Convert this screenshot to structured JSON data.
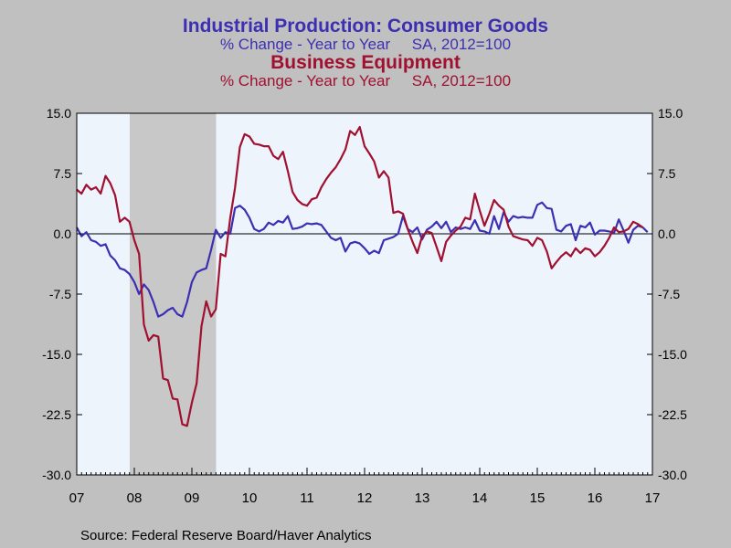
{
  "titles": {
    "consumer_title": "Industrial Production: Consumer Goods",
    "consumer_sub": "% Change - Year to Year     SA, 2012=100",
    "business_title": "Business Equipment",
    "business_sub": "% Change - Year to Year     SA, 2012=100"
  },
  "source": "Source:  Federal Reserve Board/Haver Analytics",
  "colors": {
    "consumer": "#3d2fb2",
    "business": "#a01030",
    "plot_bg": "#eef4fc",
    "recession": "#c8c8c8"
  },
  "chart_data": {
    "type": "line",
    "x_ticks": [
      "07",
      "08",
      "09",
      "10",
      "11",
      "12",
      "13",
      "14",
      "15",
      "16",
      "17"
    ],
    "x_range": [
      2007.0,
      2017.0
    ],
    "y_ticks": [
      "15.0",
      "7.5",
      "0.0",
      "-7.5",
      "-15.0",
      "-22.5",
      "-30.0"
    ],
    "ylim": [
      -30,
      15
    ],
    "recession": [
      2007.92,
      2009.42
    ],
    "series": [
      {
        "name": "Industrial Production: Consumer Goods",
        "color": "#3d2fb2",
        "x_start": 2007.0,
        "step": 0.08333,
        "values": [
          0.8,
          -0.3,
          0.2,
          -0.8,
          -1.0,
          -1.5,
          -1.3,
          -2.7,
          -3.3,
          -4.3,
          -4.5,
          -5.0,
          -6.0,
          -7.5,
          -6.3,
          -7.0,
          -8.5,
          -10.3,
          -10.0,
          -9.5,
          -9.2,
          -10.0,
          -10.3,
          -8.5,
          -6.0,
          -4.8,
          -4.5,
          -4.3,
          -2.0,
          0.5,
          -0.5,
          0.2,
          0.0,
          3.2,
          3.5,
          3.0,
          2.0,
          0.6,
          0.3,
          0.6,
          1.4,
          1.1,
          1.6,
          1.4,
          2.2,
          0.6,
          0.7,
          0.9,
          1.3,
          1.2,
          1.3,
          1.1,
          0.3,
          -0.5,
          -0.8,
          -0.5,
          -2.2,
          -1.2,
          -1.0,
          -1.2,
          -1.8,
          -2.5,
          -2.1,
          -2.4,
          -0.8,
          -0.6,
          -0.4,
          0.0,
          2.2,
          0.6,
          0.2,
          0.8,
          -0.7,
          0.5,
          0.9,
          1.5,
          0.7,
          1.5,
          0.2,
          0.8,
          0.6,
          0.8,
          0.6,
          1.7,
          0.4,
          0.3,
          0.0,
          2.2,
          0.6,
          2.7,
          1.5,
          2.2,
          2.0,
          2.1,
          2.0,
          2.0,
          3.6,
          3.9,
          3.2,
          3.1,
          0.5,
          0.3,
          1.0,
          1.2,
          -0.8,
          1.0,
          0.8,
          1.4,
          -0.1,
          0.4,
          0.4,
          0.3,
          0.1,
          1.8,
          0.4,
          -1.1,
          0.5,
          1.0,
          0.8,
          0.2
        ]
      },
      {
        "name": "Business Equipment",
        "color": "#a01030",
        "x_start": 2007.0,
        "step": 0.08333,
        "values": [
          5.5,
          5.0,
          6.1,
          5.5,
          5.8,
          5.0,
          7.2,
          6.3,
          4.8,
          1.5,
          2.0,
          1.5,
          -0.8,
          -2.5,
          -11.3,
          -13.3,
          -12.6,
          -12.8,
          -18.0,
          -18.2,
          -20.5,
          -20.6,
          -23.7,
          -23.9,
          -21.0,
          -18.6,
          -11.5,
          -8.4,
          -10.3,
          -9.4,
          -2.5,
          -2.8,
          2.0,
          5.7,
          10.8,
          12.4,
          12.1,
          11.2,
          11.1,
          10.9,
          10.9,
          9.7,
          9.3,
          10.2,
          7.8,
          5.2,
          4.2,
          3.7,
          3.5,
          4.3,
          4.5,
          5.8,
          6.8,
          7.6,
          8.3,
          9.3,
          10.5,
          12.8,
          12.3,
          13.3,
          10.9,
          10.0,
          9.0,
          7.0,
          7.8,
          7.0,
          2.6,
          2.8,
          2.5,
          0.6,
          -1.0,
          -2.4,
          -0.3,
          0.3,
          0.1,
          -1.6,
          -3.4,
          -1.0,
          -0.2,
          0.4,
          0.9,
          2.0,
          1.8,
          5.0,
          2.9,
          1.0,
          2.5,
          4.2,
          3.5,
          3.0,
          0.9,
          -0.3,
          -0.5,
          -0.7,
          -0.8,
          -1.5,
          -0.5,
          -0.8,
          -2.2,
          -4.3,
          -3.5,
          -2.8,
          -2.3,
          -2.8,
          -1.8,
          -2.4,
          -1.8,
          -2.0,
          -2.8,
          -2.3,
          -1.5,
          -0.5,
          0.8,
          0.2,
          0.3,
          0.6,
          1.5,
          1.2,
          0.8
        ]
      }
    ]
  }
}
